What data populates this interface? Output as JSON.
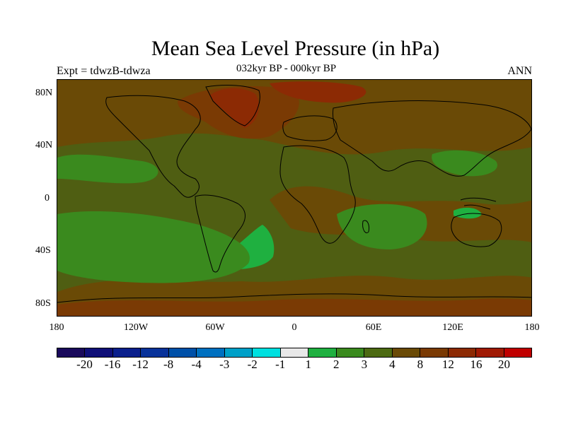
{
  "title": "Mean Sea Level Pressure (in hPa)",
  "experiment": "Expt = tdwzB-tdwza",
  "period": "032kyr BP - 000kyr BP",
  "season": "ANN",
  "lat_labels": [
    "80N",
    "40N",
    "0",
    "40S",
    "80S"
  ],
  "lon_labels": [
    "180",
    "120W",
    "60W",
    "0",
    "60E",
    "120E",
    "180"
  ],
  "colorbar": {
    "colors": [
      "#1a0a5c",
      "#0f0f78",
      "#0a1f8c",
      "#08329a",
      "#0050a8",
      "#0070c0",
      "#00a0c8",
      "#00e0e0",
      "#e8e8e8",
      "#1fb040",
      "#3a8a1e",
      "#4c6a12",
      "#6a4a06",
      "#7a3a04",
      "#8c2a04",
      "#a01a04",
      "#c00000"
    ],
    "labels": [
      "-20",
      "-16",
      "-12",
      "-8",
      "-4",
      "-3",
      "-2",
      "-1",
      "1",
      "2",
      "3",
      "4",
      "8",
      "12",
      "16",
      "20"
    ]
  },
  "field_colors": {
    "background": "#4f5e12",
    "brown": "#6a4a06",
    "red_brown": "#7a3a04",
    "red": "#8c2a04",
    "green_light": "#1fb040",
    "green_mid": "#3a8a1e",
    "coast": "#000000"
  }
}
